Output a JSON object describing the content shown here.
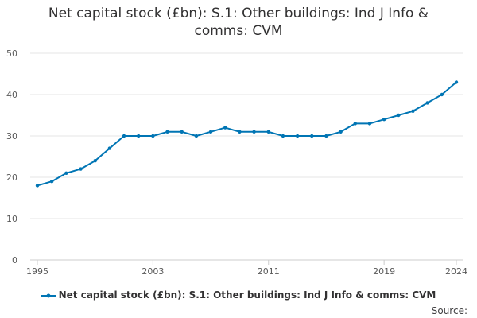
{
  "chart_data": {
    "type": "line",
    "title": "Net capital stock (£bn): S.1: Other buildings: Ind J Info & comms: CVM",
    "xlabel": "",
    "ylabel": "",
    "x": [
      1995,
      1996,
      1997,
      1998,
      1999,
      2000,
      2001,
      2002,
      2003,
      2004,
      2005,
      2006,
      2007,
      2008,
      2009,
      2010,
      2011,
      2012,
      2013,
      2014,
      2015,
      2016,
      2017,
      2018,
      2019,
      2020,
      2021,
      2022,
      2023,
      2024
    ],
    "series": [
      {
        "name": "Net capital stock (£bn): S.1: Other buildings: Ind J Info & comms: CVM",
        "values": [
          18,
          19,
          21,
          22,
          24,
          27,
          30,
          30,
          30,
          31,
          31,
          30,
          31,
          32,
          31,
          31,
          31,
          30,
          30,
          30,
          30,
          31,
          33,
          33,
          34,
          35,
          36,
          38,
          40,
          43
        ],
        "color": "#0075b4"
      }
    ],
    "ylim": [
      0,
      50
    ],
    "y_ticks": [
      0,
      10,
      20,
      30,
      40,
      50
    ],
    "x_tick_labels": [
      "1995",
      "2003",
      "2011",
      "2019",
      "2024"
    ],
    "grid": true,
    "legend_position": "bottom"
  },
  "footer": {
    "source_label": "Source:"
  }
}
